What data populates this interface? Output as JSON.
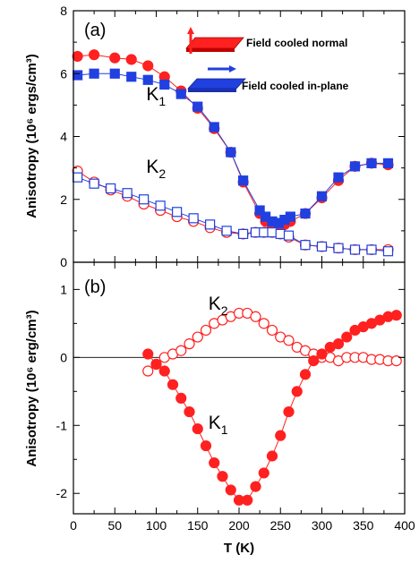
{
  "chart_data": [
    {
      "type": "scatter",
      "panel_label": "(a)",
      "ylabel": "Anisotropy (10⁶ ergs/cm³)",
      "xlabel": "T  (K)",
      "xlim": [
        0,
        400
      ],
      "ylim": [
        0,
        8
      ],
      "x_ticks": [
        "0",
        "50",
        "100",
        "150",
        "200",
        "250",
        "300",
        "350",
        "400"
      ],
      "y_ticks": [
        "0",
        "2",
        "4",
        "6",
        "8"
      ],
      "annotations": [
        {
          "main": "K",
          "sub": "1",
          "x": 88,
          "y": 5.15
        },
        {
          "main": "K",
          "sub": "2",
          "x": 88,
          "y": 2.85
        }
      ],
      "legend": {
        "position": "top-right",
        "entries": [
          "Field cooled normal",
          "Field cooled in-plane"
        ]
      },
      "colors": {
        "red": "#ff2020",
        "blue": "#2040e0"
      },
      "series": [
        {
          "name": "Field cooled normal",
          "role": "K1",
          "marker": "circle",
          "filled": true,
          "color": "#ff2020",
          "x": [
            5,
            25,
            50,
            70,
            90,
            110,
            130,
            150,
            170,
            190,
            205,
            225,
            232,
            240,
            248,
            255,
            262,
            280,
            300,
            320,
            340,
            360,
            380
          ],
          "y": [
            6.55,
            6.6,
            6.5,
            6.45,
            6.25,
            5.9,
            5.45,
            4.9,
            4.25,
            3.5,
            2.55,
            1.55,
            1.3,
            1.15,
            1.1,
            1.2,
            1.3,
            1.55,
            2.05,
            2.6,
            3.05,
            3.15,
            3.1
          ]
        },
        {
          "name": "Field cooled in-plane",
          "role": "K1",
          "marker": "square",
          "filled": true,
          "color": "#2040e0",
          "x": [
            5,
            25,
            50,
            70,
            90,
            110,
            130,
            150,
            170,
            190,
            205,
            225,
            232,
            240,
            248,
            255,
            262,
            280,
            300,
            320,
            340,
            360,
            380
          ],
          "y": [
            5.95,
            6.0,
            6.0,
            5.9,
            5.8,
            5.65,
            5.35,
            4.95,
            4.3,
            3.5,
            2.6,
            1.65,
            1.45,
            1.3,
            1.25,
            1.35,
            1.45,
            1.55,
            2.1,
            2.7,
            3.05,
            3.15,
            3.15
          ]
        },
        {
          "name": "Field cooled normal",
          "role": "K2",
          "marker": "circle",
          "filled": false,
          "color": "#ff2020",
          "x": [
            5,
            25,
            45,
            65,
            85,
            105,
            125,
            145,
            165,
            185,
            205,
            220,
            230,
            240,
            250,
            260,
            280,
            300,
            320,
            340,
            360,
            380
          ],
          "y": [
            2.9,
            2.55,
            2.3,
            2.1,
            1.85,
            1.65,
            1.45,
            1.3,
            1.1,
            0.95,
            0.9,
            0.95,
            0.95,
            0.95,
            0.9,
            0.8,
            0.55,
            0.5,
            0.45,
            0.4,
            0.4,
            0.4
          ]
        },
        {
          "name": "Field cooled in-plane",
          "role": "K2",
          "marker": "square",
          "filled": false,
          "color": "#2040e0",
          "x": [
            5,
            25,
            45,
            65,
            85,
            105,
            125,
            145,
            165,
            185,
            205,
            220,
            230,
            240,
            250,
            260,
            280,
            300,
            320,
            340,
            360,
            380
          ],
          "y": [
            2.7,
            2.5,
            2.35,
            2.2,
            2.0,
            1.8,
            1.6,
            1.4,
            1.2,
            1.0,
            0.9,
            0.95,
            0.95,
            0.95,
            0.9,
            0.85,
            0.55,
            0.5,
            0.45,
            0.4,
            0.4,
            0.35
          ]
        }
      ]
    },
    {
      "type": "scatter",
      "panel_label": "(b)",
      "ylabel": "Anisotropy (10⁶ erg/cm³)",
      "xlabel": "T  (K)",
      "xlim": [
        0,
        400
      ],
      "ylim": [
        -2.3,
        1.4
      ],
      "x_ticks": [
        "0",
        "50",
        "100",
        "150",
        "200",
        "250",
        "300",
        "350",
        "400"
      ],
      "y_ticks": [
        "-2",
        "-1",
        "0",
        "1"
      ],
      "zero_line": true,
      "annotations": [
        {
          "main": "K",
          "sub": "2",
          "x": 163,
          "y": 0.7
        },
        {
          "main": "K",
          "sub": "1",
          "x": 163,
          "y": -1.05
        }
      ],
      "series": [
        {
          "role": "K2",
          "marker": "circle",
          "filled": false,
          "color": "#ff2020",
          "x": [
            90,
            100,
            110,
            120,
            130,
            140,
            150,
            160,
            170,
            180,
            190,
            200,
            210,
            220,
            230,
            240,
            250,
            260,
            270,
            280,
            290,
            300,
            310,
            320,
            330,
            340,
            350,
            360,
            370,
            380,
            390
          ],
          "y": [
            -0.2,
            -0.1,
            0.0,
            0.05,
            0.1,
            0.2,
            0.3,
            0.4,
            0.5,
            0.55,
            0.6,
            0.65,
            0.65,
            0.6,
            0.5,
            0.4,
            0.3,
            0.25,
            0.15,
            0.1,
            0.05,
            0.0,
            0.0,
            -0.05,
            0.0,
            0.0,
            0.0,
            -0.03,
            -0.03,
            -0.05,
            -0.05
          ]
        },
        {
          "role": "K1",
          "marker": "circle",
          "filled": true,
          "color": "#ff2020",
          "x": [
            90,
            100,
            110,
            120,
            130,
            140,
            150,
            160,
            170,
            180,
            190,
            200,
            210,
            220,
            230,
            240,
            250,
            260,
            270,
            280,
            290,
            300,
            310,
            320,
            330,
            340,
            350,
            360,
            370,
            380,
            390
          ],
          "y": [
            0.05,
            -0.1,
            -0.2,
            -0.4,
            -0.6,
            -0.8,
            -1.05,
            -1.3,
            -1.55,
            -1.75,
            -1.95,
            -2.1,
            -2.1,
            -1.9,
            -1.7,
            -1.45,
            -1.15,
            -0.8,
            -0.5,
            -0.25,
            -0.05,
            0.05,
            0.15,
            0.2,
            0.3,
            0.4,
            0.45,
            0.5,
            0.55,
            0.6,
            0.62
          ]
        }
      ]
    }
  ]
}
